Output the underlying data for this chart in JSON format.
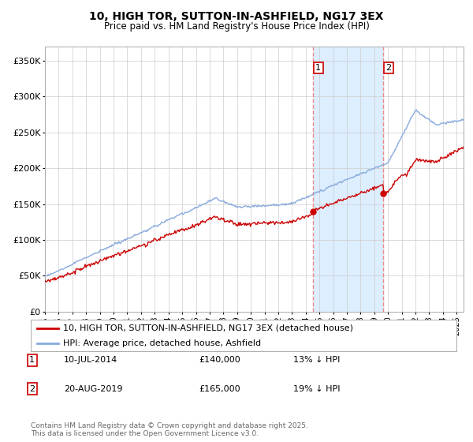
{
  "title": "10, HIGH TOR, SUTTON-IN-ASHFIELD, NG17 3EX",
  "subtitle": "Price paid vs. HM Land Registry's House Price Index (HPI)",
  "legend_line1": "10, HIGH TOR, SUTTON-IN-ASHFIELD, NG17 3EX (detached house)",
  "legend_line2": "HPI: Average price, detached house, Ashfield",
  "annotation1_date": "10-JUL-2014",
  "annotation1_price": "£140,000",
  "annotation1_hpi": "13% ↓ HPI",
  "annotation2_date": "20-AUG-2019",
  "annotation2_price": "£165,000",
  "annotation2_hpi": "19% ↓ HPI",
  "footer": "Contains HM Land Registry data © Crown copyright and database right 2025.\nThis data is licensed under the Open Government Licence v3.0.",
  "sale1_year": 2014.52,
  "sale1_value": 140000,
  "sale2_year": 2019.64,
  "sale2_value": 165000,
  "line_color_property": "#cc0000",
  "line_color_hpi": "#88aadd",
  "shaded_color": "#ddeeff",
  "vline_color": "#ee8888",
  "background_color": "#ffffff",
  "grid_color": "#cccccc",
  "ylim": [
    0,
    370000
  ],
  "xlim_start": 1995,
  "xlim_end": 2025.5
}
